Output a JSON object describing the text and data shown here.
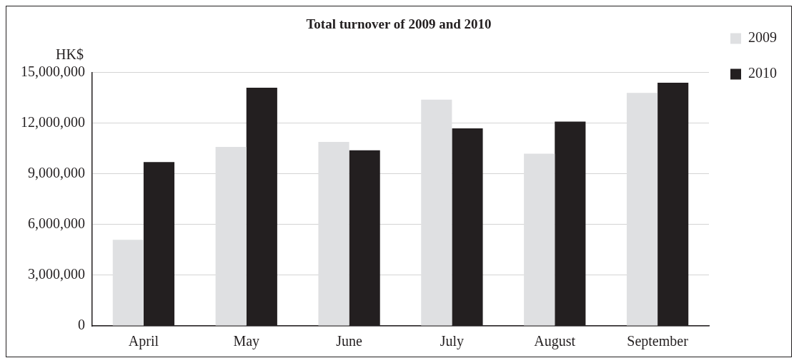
{
  "chart_data": {
    "type": "bar",
    "title": "Total turnover of 2009 and 2010",
    "ylabel": "HK$",
    "categories": [
      "April",
      "May",
      "June",
      "July",
      "August",
      "September"
    ],
    "series": [
      {
        "name": "2009",
        "color": "#dfe0e2",
        "values": [
          5100000,
          10600000,
          10900000,
          13400000,
          10200000,
          13800000
        ]
      },
      {
        "name": "2010",
        "color": "#231f20",
        "values": [
          9700000,
          14100000,
          10400000,
          11700000,
          12100000,
          14400000
        ]
      }
    ],
    "ylim": [
      0,
      15000000
    ],
    "yticks": [
      0,
      {
        "value": 3000000,
        "label": "3,000,000"
      },
      {
        "value": 6000000,
        "label": "6,000,000"
      },
      {
        "value": 9000000,
        "label": "9,000,000"
      },
      {
        "value": 12000000,
        "label": "12,000,000"
      },
      {
        "value": 15000000,
        "label": "15,000,000"
      }
    ],
    "grid": "y",
    "legend": "right"
  }
}
